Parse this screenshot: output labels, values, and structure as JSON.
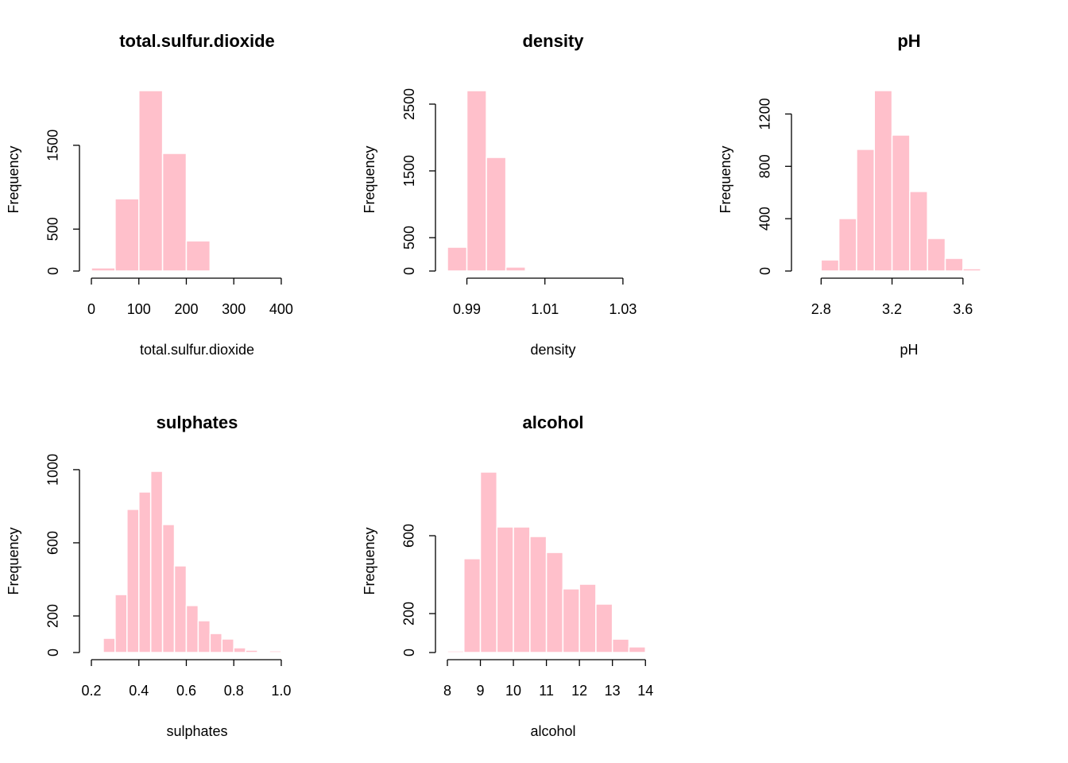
{
  "chart_data": [
    {
      "type": "histogram",
      "title": "total.sulfur.dioxide",
      "xlabel": "total.sulfur.dioxide",
      "ylabel": "Frequency",
      "bins": [
        0,
        50,
        100,
        150,
        200,
        250
      ],
      "values": [
        38,
        862,
        2152,
        1403,
        360
      ],
      "color": "#ffc0cb",
      "xlim": [
        0,
        452
      ],
      "ylim": [
        0,
        2190
      ],
      "xticks": [
        0,
        100,
        200,
        300,
        400
      ],
      "yticks": [
        0,
        500,
        1500
      ]
    },
    {
      "type": "histogram",
      "title": "density",
      "xlabel": "density",
      "ylabel": "Frequency",
      "bins": [
        0.985,
        0.99,
        0.995,
        1.0,
        1.005
      ],
      "values": [
        357,
        2702,
        1702,
        60
      ],
      "color": "#ffc0cb",
      "xlim": [
        0.985,
        1.04
      ],
      "ylim": [
        0,
        2750
      ],
      "xticks": [
        0.99,
        1.01,
        1.03
      ],
      "yticks": [
        0,
        500,
        1500,
        2500
      ]
    },
    {
      "type": "histogram",
      "title": "pH",
      "xlabel": "pH",
      "ylabel": "Frequency",
      "bins": [
        2.8,
        2.9,
        3.0,
        3.1,
        3.2,
        3.3,
        3.4,
        3.5,
        3.6,
        3.7
      ],
      "values": [
        85,
        401,
        930,
        1379,
        1039,
        608,
        249,
        97,
        18
      ],
      "color": "#ffc0cb",
      "xlim": [
        2.7,
        3.91
      ],
      "ylim": [
        0,
        1403
      ],
      "xticks": [
        2.8,
        3.2,
        3.6
      ],
      "yticks": [
        0,
        400,
        800,
        1200
      ]
    },
    {
      "type": "histogram",
      "title": "sulphates",
      "xlabel": "sulphates",
      "ylabel": "Frequency",
      "bins": [
        0.25,
        0.3,
        0.35,
        0.4,
        0.45,
        0.5,
        0.55,
        0.6,
        0.65,
        0.7,
        0.75,
        0.8,
        0.85,
        0.9,
        0.95,
        1.0
      ],
      "values": [
        78,
        317,
        783,
        878,
        991,
        700,
        474,
        257,
        174,
        104,
        74,
        26,
        13,
        0,
        9
      ],
      "color": "#ffc0cb",
      "xlim": [
        0.2,
        1.104
      ],
      "ylim": [
        0,
        1004
      ],
      "xticks": [
        0.2,
        0.4,
        0.6,
        0.8,
        {
          "value": 1,
          "label": "1.0"
        }
      ],
      "yticks": [
        0,
        200,
        600,
        1000
      ]
    },
    {
      "type": "histogram",
      "title": "alcohol",
      "xlabel": "alcohol",
      "ylabel": "Frequency",
      "bins": [
        8,
        8.5,
        9,
        9.5,
        10,
        10.5,
        11,
        11.5,
        12,
        12.5,
        13,
        13.5,
        14
      ],
      "values": [
        8,
        482,
        927,
        645,
        645,
        596,
        514,
        327,
        351,
        249,
        69,
        29
      ],
      "color": "#ffc0cb",
      "xlim": [
        8,
        14.5
      ],
      "ylim": [
        0,
        943
      ],
      "xticks": [
        8,
        9,
        10,
        11,
        12,
        13,
        14
      ],
      "yticks": [
        0,
        200,
        600
      ]
    }
  ]
}
